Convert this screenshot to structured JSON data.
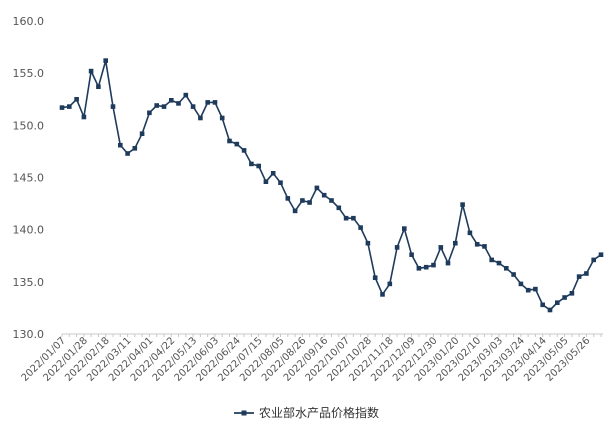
{
  "chart_data": {
    "type": "line",
    "title": "",
    "xlabel": "",
    "ylabel": "",
    "ylim": [
      130.0,
      160.0
    ],
    "yticks": [
      "130.0",
      "135.0",
      "140.0",
      "145.0",
      "150.0",
      "155.0",
      "160.0"
    ],
    "x_tick_labels": [
      "2022/01/07",
      "2022/01/28",
      "2022/02/18",
      "2022/03/11",
      "2022/04/01",
      "2022/04/22",
      "2022/05/13",
      "2022/06/03",
      "2022/06/24",
      "2022/07/15",
      "2022/08/05",
      "2022/08/26",
      "2022/09/16",
      "2022/10/07",
      "2022/10/28",
      "2022/11/18",
      "2022/12/09",
      "2022/12/30",
      "2023/01/20",
      "2023/02/10",
      "2023/03/03",
      "2023/03/24",
      "2023/04/14",
      "2023/05/05",
      "2023/05/26"
    ],
    "grid": false,
    "legend_position": "bottom",
    "color": "#1f3b5c",
    "series": [
      {
        "name": "农业部水产品价格指数",
        "values": [
          151.7,
          151.8,
          152.5,
          150.8,
          155.2,
          153.7,
          156.2,
          151.8,
          148.1,
          147.3,
          147.8,
          149.2,
          151.2,
          151.9,
          151.8,
          152.4,
          152.1,
          152.9,
          151.8,
          150.7,
          152.2,
          152.2,
          150.7,
          148.5,
          148.2,
          147.6,
          146.3,
          146.1,
          144.6,
          145.4,
          144.5,
          143.0,
          141.8,
          142.8,
          142.6,
          144.0,
          143.3,
          142.8,
          142.1,
          141.1,
          141.1,
          140.2,
          138.7,
          135.4,
          133.8,
          134.8,
          138.3,
          140.1,
          137.6,
          136.3,
          136.4,
          136.6,
          138.3,
          136.8,
          138.7,
          142.4,
          139.7,
          138.6,
          138.4,
          137.1,
          136.8,
          136.3,
          135.7,
          134.8,
          134.2,
          134.3,
          132.8,
          132.3,
          133.0,
          133.5,
          133.9,
          135.5,
          135.8,
          137.1,
          137.6
        ]
      }
    ]
  }
}
